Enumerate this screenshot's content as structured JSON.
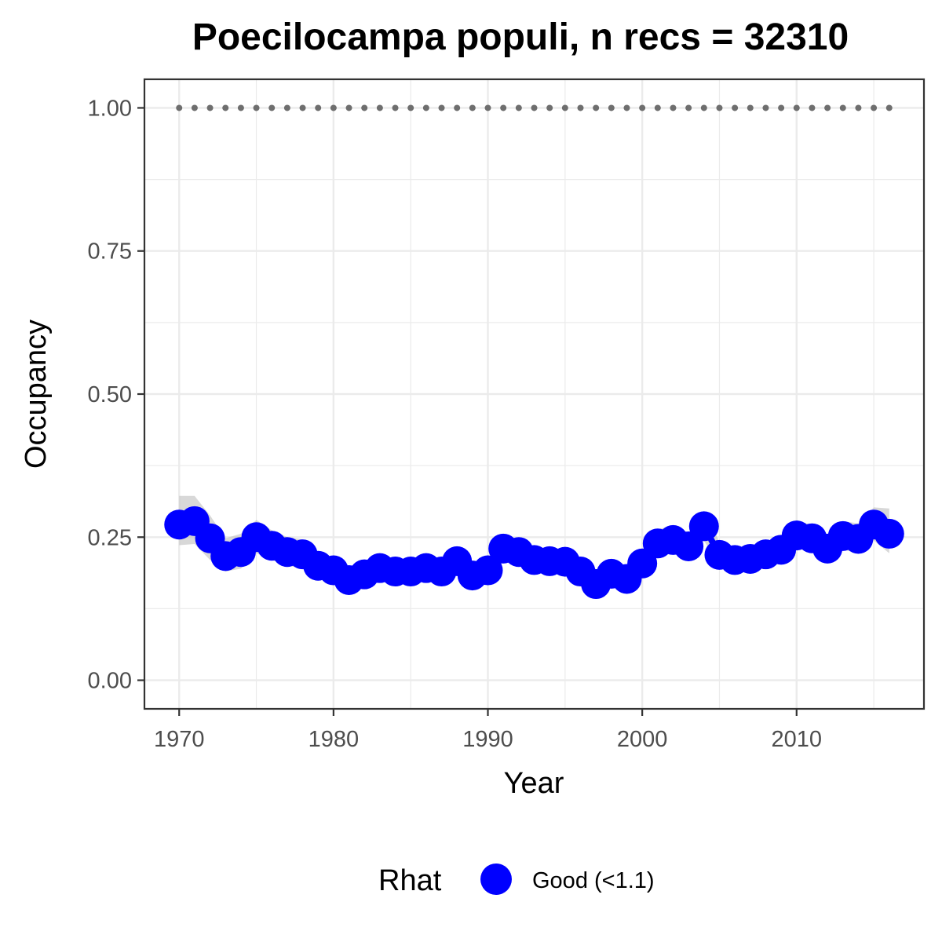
{
  "chart_data": {
    "type": "line",
    "title": "Poecilocampa populi, n recs = 32310",
    "xlabel": "Year",
    "ylabel": "Occupancy",
    "xlim": [
      1967.75,
      2018.25
    ],
    "ylim": [
      -0.05,
      1.05
    ],
    "x_ticks": [
      1970,
      1980,
      1990,
      2000,
      2010
    ],
    "x_tick_labels": [
      "1970",
      "1980",
      "1990",
      "2000",
      "2010"
    ],
    "y_ticks": [
      0,
      0.25,
      0.5,
      0.75,
      1
    ],
    "y_tick_labels": [
      "0.00",
      "0.25",
      "0.50",
      "0.75",
      "1.00"
    ],
    "grid": true,
    "legend_position": "bottom",
    "colors": {
      "series": "#0000ff",
      "ribbon": "#bebebe",
      "reference": "#6e6e6e",
      "grid": "#ebebeb",
      "panel_border": "#333333"
    },
    "x": [
      1970,
      1971,
      1972,
      1973,
      1974,
      1975,
      1976,
      1977,
      1978,
      1979,
      1980,
      1981,
      1982,
      1983,
      1984,
      1985,
      1986,
      1987,
      1988,
      1989,
      1990,
      1991,
      1992,
      1993,
      1994,
      1995,
      1996,
      1997,
      1998,
      1999,
      2000,
      2001,
      2002,
      2003,
      2004,
      2005,
      2006,
      2007,
      2008,
      2009,
      2010,
      2011,
      2012,
      2013,
      2014,
      2015,
      2016
    ],
    "series": [
      {
        "name": "Good (<1.1)",
        "values": [
          0.272,
          0.278,
          0.248,
          0.217,
          0.224,
          0.25,
          0.235,
          0.224,
          0.22,
          0.2,
          0.192,
          0.175,
          0.185,
          0.196,
          0.19,
          0.19,
          0.196,
          0.19,
          0.208,
          0.183,
          0.192,
          0.23,
          0.224,
          0.21,
          0.208,
          0.207,
          0.19,
          0.168,
          0.186,
          0.177,
          0.204,
          0.239,
          0.245,
          0.234,
          0.269,
          0.219,
          0.21,
          0.212,
          0.22,
          0.228,
          0.253,
          0.248,
          0.23,
          0.252,
          0.247,
          0.272,
          0.256
        ],
        "lower": [
          0.236,
          0.238,
          0.21,
          0.19,
          0.195,
          0.222,
          0.21,
          0.2,
          0.196,
          0.18,
          0.174,
          0.16,
          0.168,
          0.178,
          0.172,
          0.172,
          0.178,
          0.172,
          0.188,
          0.165,
          0.174,
          0.208,
          0.204,
          0.19,
          0.19,
          0.188,
          0.172,
          0.152,
          0.168,
          0.16,
          0.184,
          0.216,
          0.222,
          0.212,
          0.244,
          0.198,
          0.19,
          0.192,
          0.2,
          0.206,
          0.23,
          0.225,
          0.208,
          0.228,
          0.222,
          0.244,
          0.222
        ],
        "upper": [
          0.322,
          0.322,
          0.288,
          0.248,
          0.256,
          0.28,
          0.262,
          0.25,
          0.246,
          0.222,
          0.212,
          0.192,
          0.204,
          0.216,
          0.21,
          0.21,
          0.216,
          0.21,
          0.23,
          0.203,
          0.212,
          0.254,
          0.246,
          0.232,
          0.228,
          0.228,
          0.21,
          0.186,
          0.206,
          0.196,
          0.226,
          0.264,
          0.27,
          0.258,
          0.296,
          0.242,
          0.232,
          0.234,
          0.242,
          0.252,
          0.278,
          0.272,
          0.254,
          0.278,
          0.274,
          0.302,
          0.3
        ]
      }
    ],
    "reference_line": {
      "y": 1.0,
      "style": "dotted"
    },
    "legend": {
      "title": "Rhat",
      "entries": [
        "Good (<1.1)"
      ]
    }
  }
}
